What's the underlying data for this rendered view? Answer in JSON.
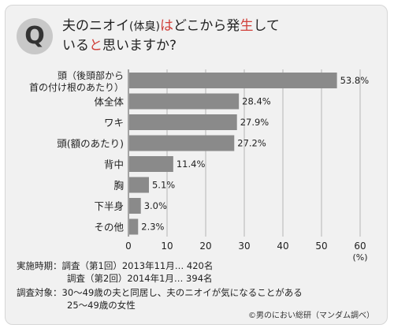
{
  "question": {
    "badge": "Q",
    "line1_a": "夫のニオイ",
    "line1_b": "(体臭)",
    "line1_c": "は",
    "line1_d": "どこから発",
    "line1_e": "生",
    "line1_f": "して",
    "line2_a": "いる",
    "line2_b": "と",
    "line2_c": "思いますか?"
  },
  "chart_data": {
    "type": "bar",
    "orientation": "horizontal",
    "categories": [
      "頭（後頭部から首の付け根のあたり）",
      "体全体",
      "ワキ",
      "頭(額のあたり)",
      "背中",
      "胸",
      "下半身",
      "その他"
    ],
    "category_lines": [
      [
        "頭（後頭部から",
        "首の付け根のあたり）"
      ],
      [
        "体全体"
      ],
      [
        "ワキ"
      ],
      [
        "頭(額のあたり)"
      ],
      [
        "背中"
      ],
      [
        "胸"
      ],
      [
        "下半身"
      ],
      [
        "その他"
      ]
    ],
    "values": [
      53.8,
      28.4,
      27.9,
      27.2,
      11.4,
      5.1,
      3.0,
      2.3
    ],
    "value_labels": [
      "53.8%",
      "28.4%",
      "27.9%",
      "27.2%",
      "11.4%",
      "5.1%",
      "3.0%",
      "2.3%"
    ],
    "xlim": [
      0,
      60
    ],
    "xticks": [
      "0",
      "10",
      "20",
      "30",
      "40",
      "50",
      "60"
    ],
    "xunit": "(%)",
    "bar_color": "#8a8a8a",
    "grid": true
  },
  "footer": {
    "period_label": "実施時期：",
    "period_1": "調査（第1回）2013年11月… 420名",
    "period_2": "調査（第2回）2014年1月… 394名",
    "target_label": "調査対象：",
    "target_1": "30〜49歳の夫と同居し、夫のニオイが気になることがある",
    "target_2": "25〜49歳の女性",
    "credit": "©男のにおい総研（マンダム調べ）"
  }
}
